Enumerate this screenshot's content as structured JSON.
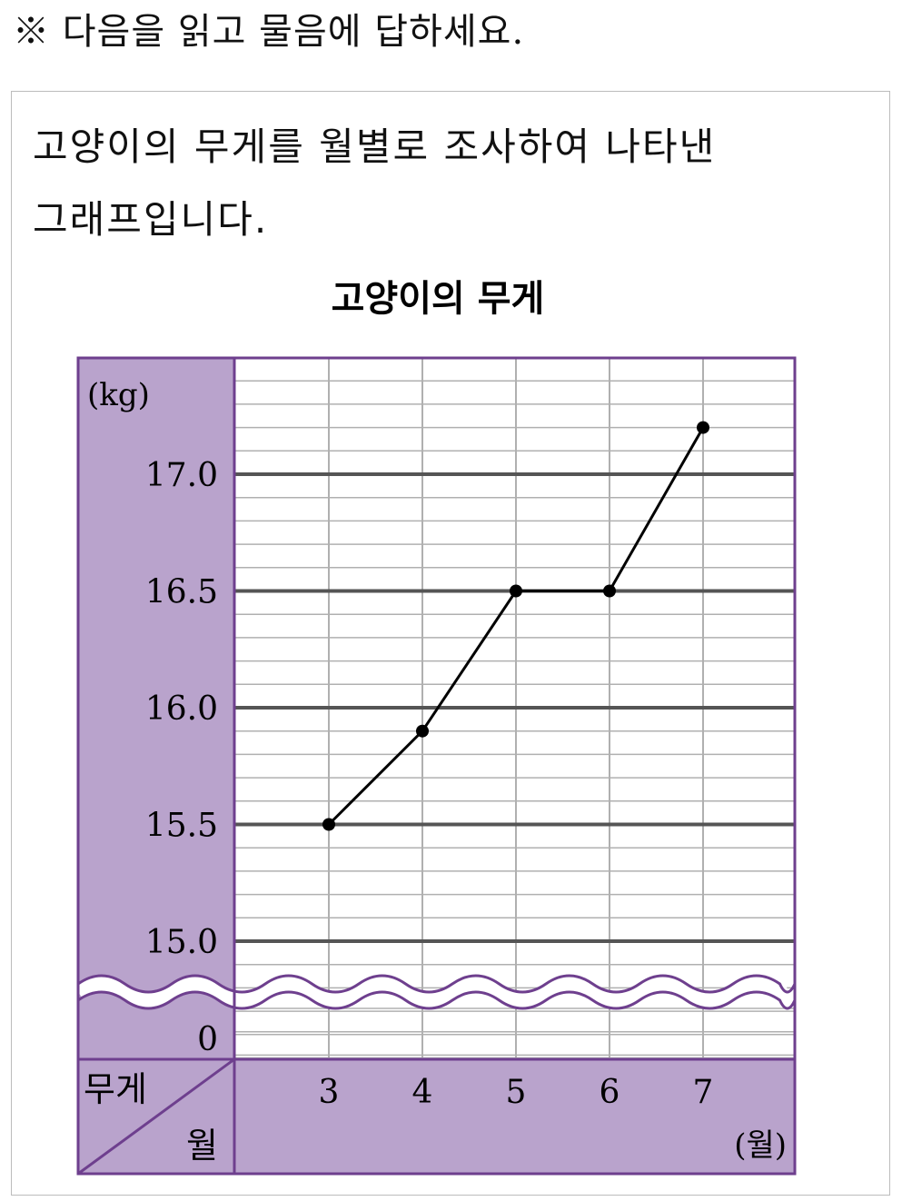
{
  "instruction": "※ 다음을 읽고 물음에 답하세요.",
  "passage": {
    "line1": "고양이의 무게를 월별로 조사하여 나타낸",
    "line2": "그래프입니다."
  },
  "chart_data": {
    "type": "line",
    "title": "고양이의 무게",
    "ylabel": "(kg)",
    "xlabel": "(월)",
    "corner_top": "무게",
    "corner_bottom": "월",
    "categories": [
      "3",
      "4",
      "5",
      "6",
      "7"
    ],
    "series": [
      {
        "values": [
          15.5,
          15.9,
          16.5,
          16.5,
          17.2
        ]
      }
    ],
    "y_ticks": [
      "17.0",
      "16.5",
      "16.0",
      "15.5",
      "15.0"
    ],
    "y_tick_values": [
      17.0,
      16.5,
      16.0,
      15.5,
      15.0
    ],
    "y_zero_label": "0",
    "ylim": [
      15.0,
      17.5
    ],
    "minor_step": 0.1,
    "axis_break": true,
    "grid": true,
    "colors": {
      "panel": "#b9a3cc",
      "border": "#6e3f8e",
      "major_grid": "#555555",
      "minor_grid": "#b0b0b0",
      "line": "#000000"
    }
  }
}
